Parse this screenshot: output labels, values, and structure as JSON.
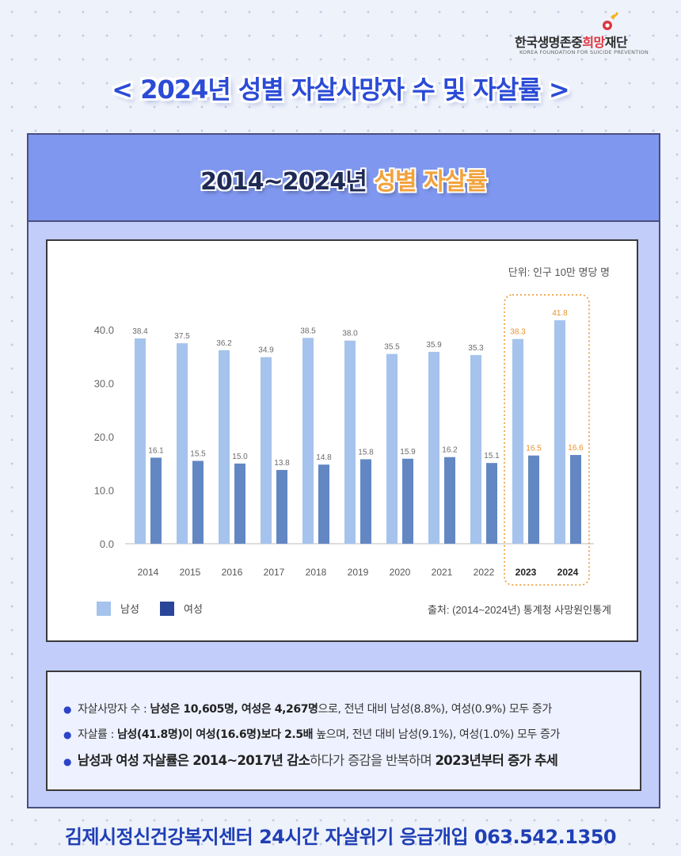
{
  "header": {
    "logo_name_a": "한국생명존중",
    "logo_name_b": "희망",
    "logo_name_c": "재단",
    "logo_sub": "KOREA FOUNDATION FOR SUICIDE PREVENTION",
    "main_title": "< 2024년 성별 자살사망자 수 및 자살률 >"
  },
  "panel": {
    "title_a": "2014~2024년 ",
    "title_b": "성별 자살률"
  },
  "chart_data": {
    "type": "bar",
    "unit_label": "단위: 인구 10만 명당 명",
    "categories": [
      "2014",
      "2015",
      "2016",
      "2017",
      "2018",
      "2019",
      "2020",
      "2021",
      "2022",
      "2023",
      "2024"
    ],
    "series": [
      {
        "name": "남성",
        "values": [
          38.4,
          37.5,
          36.2,
          34.9,
          38.5,
          38.0,
          35.5,
          35.9,
          35.3,
          38.3,
          41.8
        ]
      },
      {
        "name": "여성",
        "values": [
          16.1,
          15.5,
          15.0,
          13.8,
          14.8,
          15.8,
          15.9,
          16.2,
          15.1,
          16.5,
          16.6
        ]
      }
    ],
    "yticks": [
      "0.0",
      "10.0",
      "20.0",
      "30.0",
      "40.0"
    ],
    "ylim": [
      0,
      43
    ],
    "highlight_categories": [
      "2023",
      "2024"
    ],
    "legend_position": "bottom-left",
    "source": "출처: (2014~2024년) 통계청 사망원인통계",
    "colors": {
      "male": "#a5c3ec",
      "female": "#6287c3",
      "male_legend": "#a5c3ec",
      "female_legend": "#2a4699",
      "highlight": "#e8922c",
      "label": "#6b6b6b"
    }
  },
  "notes": {
    "n1_a": "자살사망자 수 : ",
    "n1_b": "남성은 10,605명, 여성은 4,267명",
    "n1_c": "으로, 전년 대비 남성(8.8%), 여성(0.9%) 모두 증가",
    "n2_a": "자살률 : ",
    "n2_b": "남성(41.8명)이 여성(16.6명)보다 2.5배",
    "n2_c": " 높으며, 전년 대비 남성(9.1%), 여성(1.0%) 모두 증가",
    "n3_a": "남성과 여성 자살률은 2014~2017년 감소",
    "n3_b": "하다가 증감을 반복하며 ",
    "n3_c": "2023년부터 증가 추세"
  },
  "footer": {
    "text": "김제시정신건강복지센터 24시간 자살위기 응급개입 063.542.1350"
  }
}
